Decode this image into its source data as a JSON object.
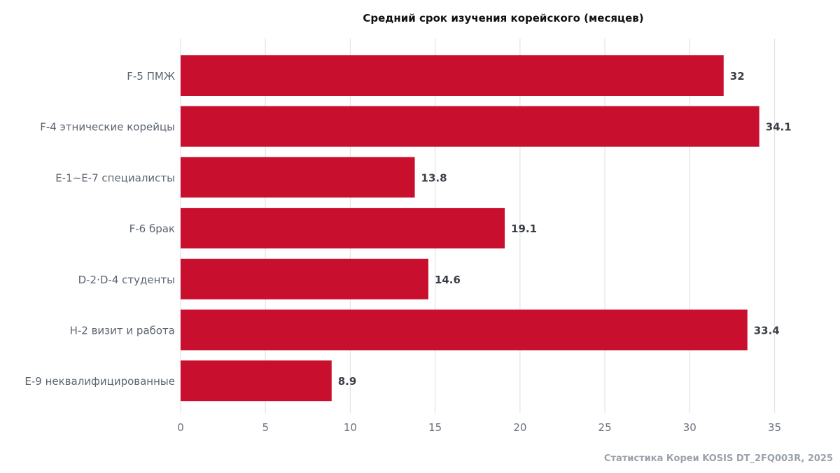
{
  "chart_data": {
    "type": "bar",
    "orientation": "horizontal",
    "title": "Средний срок изучения корейского (месяцев)",
    "categories": [
      "F-5 ПМЖ",
      "F-4 этнические корейцы",
      "E-1~E-7 специалисты",
      "F-6 брак",
      "D-2·D-4 студенты",
      "H-2 визит и работа",
      "E-9 неквалифицированные"
    ],
    "values": [
      32,
      34.1,
      13.8,
      19.1,
      14.6,
      33.4,
      8.9
    ],
    "value_labels": [
      "32",
      "34.1",
      "13.8",
      "19.1",
      "14.6",
      "33.4",
      "8.9"
    ],
    "xlim": [
      0,
      37
    ],
    "xticks": [
      0,
      5,
      10,
      15,
      20,
      25,
      30,
      35
    ],
    "xlabel": "",
    "ylabel": "",
    "grid": "vertical",
    "bar_color": "#c8102e",
    "source": "Статистика Кореи KOSIS DT_2FQ003R, 2025"
  }
}
